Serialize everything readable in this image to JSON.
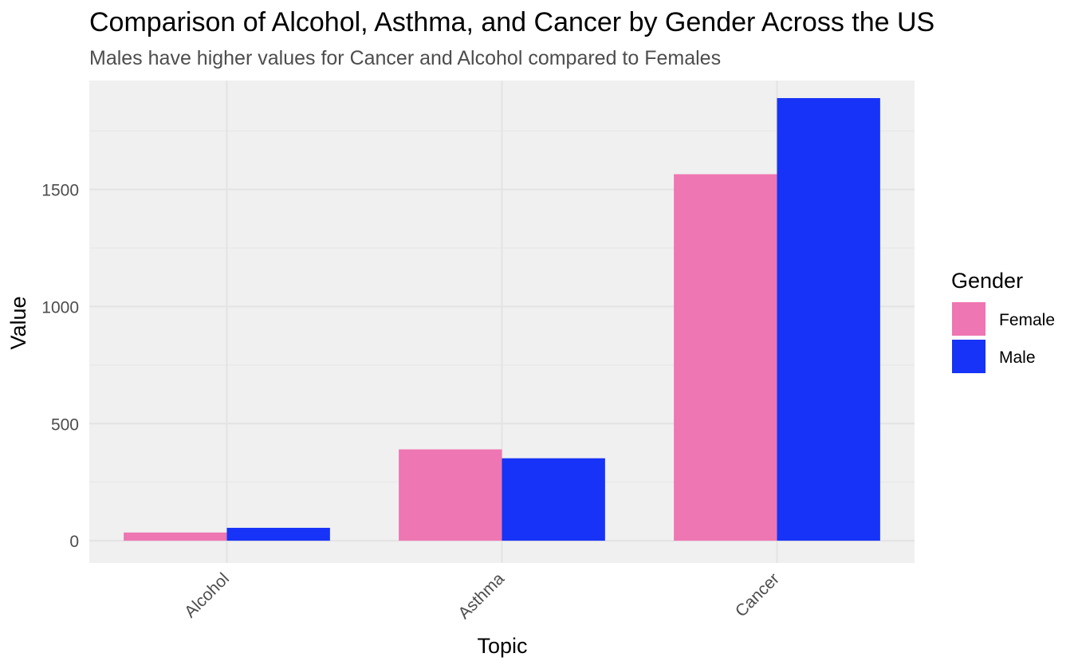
{
  "chart_data": {
    "type": "bar",
    "title": "Comparison of Alcohol, Asthma, and Cancer by Gender Across the US",
    "subtitle": "Males have higher values for Cancer and Alcohol compared to Females",
    "xlabel": "Topic",
    "ylabel": "Value",
    "categories": [
      "Alcohol",
      "Asthma",
      "Cancer"
    ],
    "series": [
      {
        "name": "Female",
        "color": "#ee76b2",
        "values": [
          35,
          390,
          1565
        ]
      },
      {
        "name": "Male",
        "color": "#1733f7",
        "values": [
          55,
          352,
          1890
        ]
      }
    ],
    "ylim": [
      -95,
      1965
    ],
    "yticks": [
      0,
      500,
      1000,
      1500
    ],
    "yticks_minor": [
      250,
      750,
      1250,
      1750
    ],
    "ytick_labels": [
      "0",
      "500",
      "1000",
      "1500"
    ],
    "grid": true,
    "legend": {
      "title": "Gender",
      "position": "right"
    },
    "x_tick_rotation_deg": 45
  }
}
